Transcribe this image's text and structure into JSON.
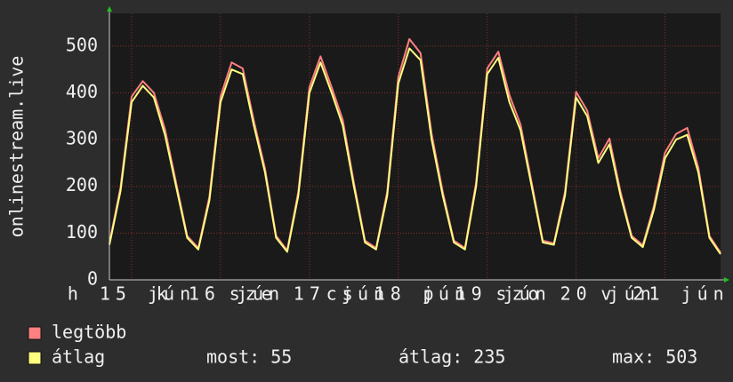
{
  "chart_data": {
    "type": "line",
    "y_label": "onlinestream.live",
    "x": [
      6,
      9,
      12,
      15,
      18,
      21,
      24,
      27,
      30,
      33,
      36,
      39,
      42,
      45,
      48,
      51,
      54,
      57,
      60,
      63,
      66,
      69,
      72,
      75,
      78,
      81,
      84,
      87,
      90,
      93,
      96,
      99,
      102,
      105,
      108,
      111,
      114,
      117,
      120,
      123,
      126,
      129,
      132,
      135,
      138,
      141,
      144,
      147,
      150,
      153,
      156,
      159,
      162,
      165,
      168,
      171
    ],
    "series": [
      {
        "name": "legtöbb",
        "color": "#ff8080",
        "values": [
          78,
          198,
          392,
          425,
          400,
          322,
          208,
          94,
          68,
          178,
          392,
          465,
          452,
          340,
          238,
          94,
          63,
          188,
          412,
          478,
          412,
          342,
          208,
          84,
          68,
          188,
          434,
          515,
          485,
          312,
          188,
          84,
          68,
          208,
          452,
          488,
          395,
          332,
          208,
          84,
          78,
          188,
          402,
          362,
          260,
          302,
          188,
          94,
          74,
          158,
          272,
          312,
          325,
          240,
          94,
          58
        ]
      },
      {
        "name": "átlag",
        "color": "#ffff80",
        "values": [
          75,
          190,
          380,
          415,
          390,
          310,
          200,
          90,
          65,
          170,
          380,
          450,
          440,
          330,
          230,
          90,
          60,
          180,
          400,
          465,
          400,
          330,
          200,
          80,
          65,
          180,
          420,
          495,
          470,
          300,
          180,
          80,
          65,
          200,
          440,
          475,
          380,
          320,
          200,
          80,
          75,
          180,
          390,
          350,
          250,
          290,
          180,
          90,
          70,
          150,
          260,
          300,
          310,
          230,
          90,
          55
        ]
      }
    ],
    "stats": [
      "most: 55",
      "átlag: 235",
      "max: 503"
    ],
    "xlim": [
      6,
      171
    ],
    "xticks": [
      {
        "value": 12,
        "label": "h 15 jún"
      },
      {
        "value": 36,
        "label": "k 16 jún"
      },
      {
        "value": 60,
        "label": "sze 17 jún"
      },
      {
        "value": 84,
        "label": "cs 18 jún"
      },
      {
        "value": 108,
        "label": "p 19 jún"
      },
      {
        "value": 132,
        "label": "szo 20 jún"
      },
      {
        "value": 156,
        "label": "v 21 jún"
      }
    ],
    "ylim": [
      0,
      570
    ],
    "yticks": [
      0,
      100,
      200,
      300,
      400,
      500
    ],
    "grid": true
  }
}
